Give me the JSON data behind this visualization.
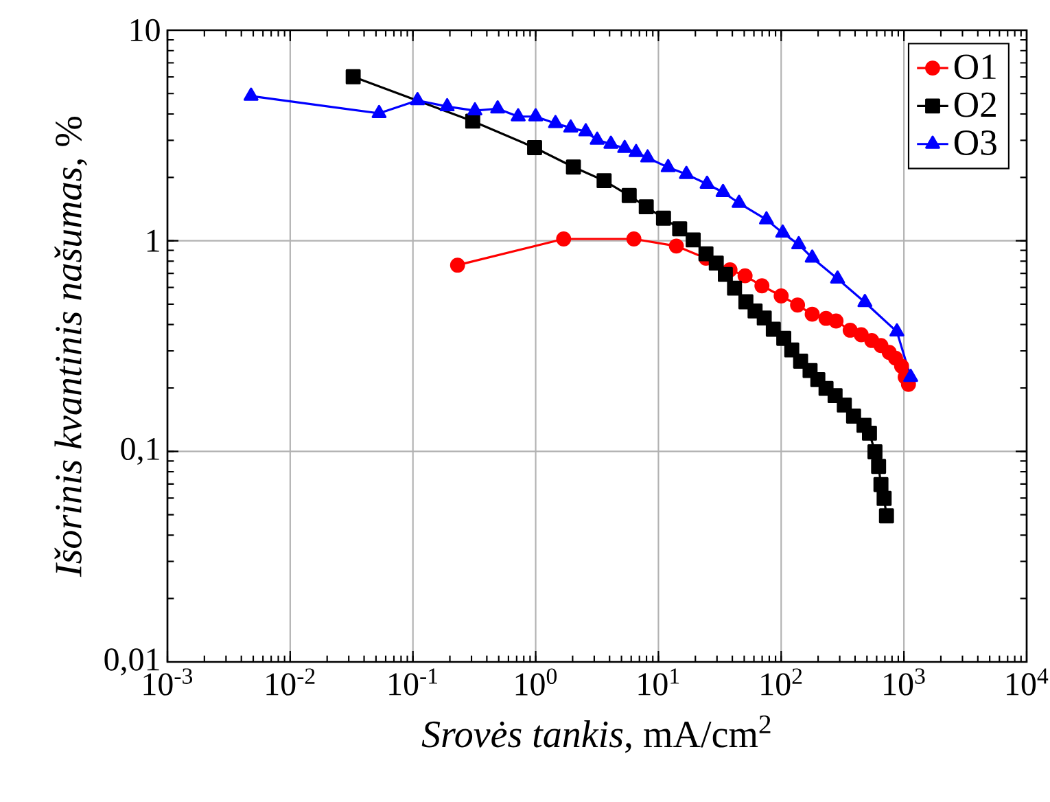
{
  "chart_data": {
    "type": "line",
    "xlabel": "*Srovės tankis*, mA/cm$^{2}$",
    "ylabel": "*Išorinis kvantinis našumas*, %",
    "log": "xy",
    "grid": true,
    "legend": "top right",
    "line_style": "solid",
    "xlim": [
      0.001,
      10000
    ],
    "ylim": [
      0.01,
      10
    ],
    "xticks": [
      {
        "value": 0.001,
        "label": "10$^{-3}$"
      },
      {
        "value": 0.01,
        "label": "10$^{-2}$"
      },
      {
        "value": 0.1,
        "label": "10$^{-1}$"
      },
      {
        "value": 1,
        "label": "10$^{0}$"
      },
      {
        "value": 10,
        "label": "10$^{1}$"
      },
      {
        "value": 100,
        "label": "10$^{2}$"
      },
      {
        "value": 1000,
        "label": "10$^{3}$"
      },
      {
        "value": 10000,
        "label": "10$^{4}$"
      }
    ],
    "yticks": [
      {
        "value": 0.01,
        "label": "0,01"
      },
      {
        "value": 0.1,
        "label": "0,1"
      },
      1,
      10
    ],
    "series": [
      {
        "name": "O1",
        "color": "#ff0000",
        "marker": "circle",
        "x": [
          0.231,
          1.69,
          6.31,
          14.0,
          24.4,
          38.3,
          50.8,
          69.7,
          100,
          136,
          179,
          232,
          280,
          365,
          449,
          547,
          650,
          759,
          855,
          957,
          1024,
          1089
        ],
        "values": [
          0.766,
          1.02,
          1.02,
          0.944,
          0.826,
          0.728,
          0.682,
          0.611,
          0.547,
          0.495,
          0.448,
          0.428,
          0.416,
          0.376,
          0.358,
          0.336,
          0.318,
          0.295,
          0.277,
          0.254,
          0.225,
          0.208
        ]
      },
      {
        "name": "O2",
        "color": "#000000",
        "marker": "square",
        "x": [
          0.0326,
          0.307,
          0.98,
          2.03,
          3.61,
          5.78,
          7.96,
          11.0,
          14.9,
          19.2,
          24.4,
          29.6,
          35.1,
          41.7,
          51.6,
          61.3,
          72.8,
          86.3,
          105,
          122,
          144,
          172,
          199,
          232,
          275,
          327,
          389,
          473,
          524,
          581,
          622,
          650,
          690,
          721
        ],
        "values": [
          6.01,
          3.7,
          2.77,
          2.24,
          1.93,
          1.64,
          1.45,
          1.28,
          1.14,
          1.01,
          0.867,
          0.784,
          0.692,
          0.596,
          0.513,
          0.464,
          0.43,
          0.38,
          0.344,
          0.303,
          0.268,
          0.242,
          0.219,
          0.199,
          0.184,
          0.166,
          0.147,
          0.133,
          0.122,
          0.0995,
          0.0848,
          0.0695,
          0.0598,
          0.0494
        ]
      },
      {
        "name": "O3",
        "color": "#0000ff",
        "marker": "triangle",
        "x": [
          0.0048,
          0.053,
          0.109,
          0.19,
          0.32,
          0.49,
          0.72,
          1.0,
          1.45,
          1.93,
          2.56,
          3.17,
          4.1,
          5.31,
          6.58,
          8.17,
          12.0,
          16.9,
          24.9,
          33.6,
          45.4,
          75.9,
          103,
          139,
          179,
          288,
          481,
          877,
          1135
        ],
        "values": [
          4.87,
          4.03,
          4.64,
          4.34,
          4.15,
          4.24,
          3.89,
          3.89,
          3.61,
          3.44,
          3.3,
          3.01,
          2.88,
          2.75,
          2.63,
          2.48,
          2.23,
          2.07,
          1.86,
          1.7,
          1.51,
          1.26,
          1.09,
          0.96,
          0.83,
          0.66,
          0.51,
          0.37,
          0.225
        ]
      }
    ]
  }
}
